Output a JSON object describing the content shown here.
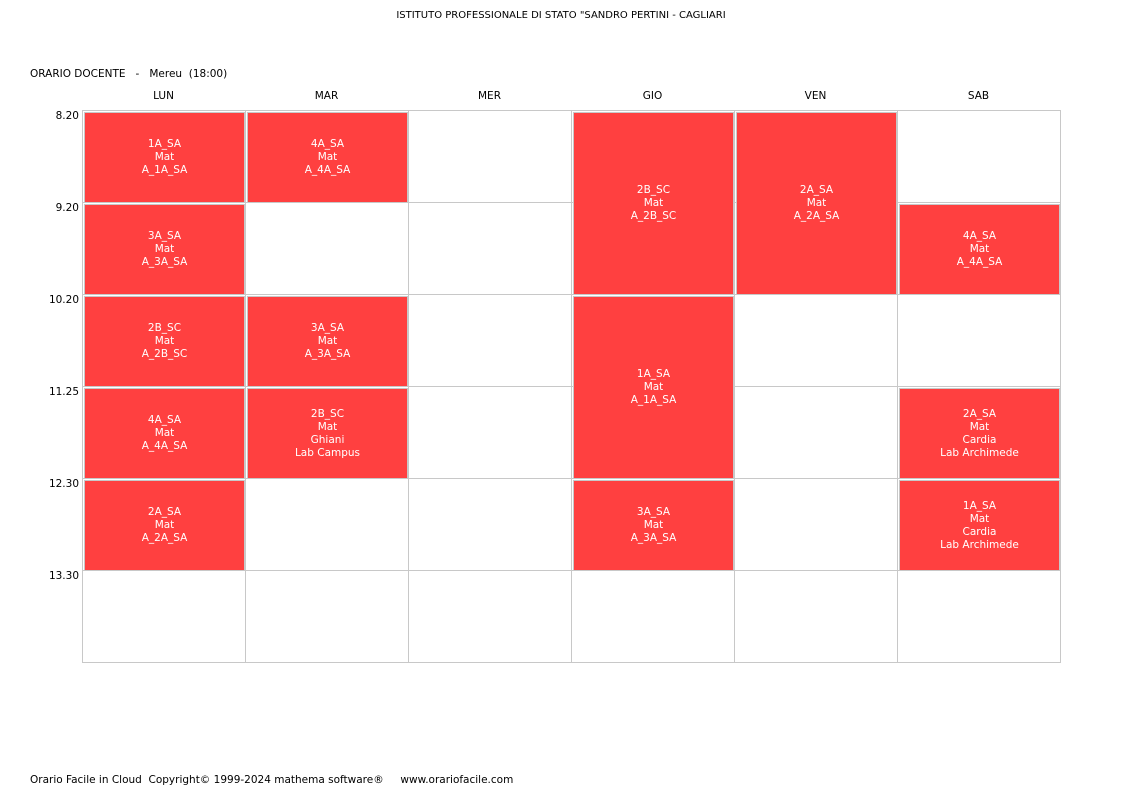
{
  "header": {
    "school": "ISTITUTO PROFESSIONALE DI STATO \"SANDRO PERTINI - CAGLIARI",
    "subtitle": "ORARIO DOCENTE   -   Mereu  (18:00)"
  },
  "days": [
    "LUN",
    "MAR",
    "MER",
    "GIO",
    "VEN",
    "SAB"
  ],
  "times": [
    "8.20",
    "9.20",
    "10.20",
    "11.25",
    "12.30",
    "13.30"
  ],
  "lessons": [
    {
      "day": 0,
      "start": 0,
      "span": 1,
      "lines": [
        "1A_SA",
        "Mat",
        "A_1A_SA"
      ]
    },
    {
      "day": 0,
      "start": 1,
      "span": 1,
      "lines": [
        "3A_SA",
        "Mat",
        "A_3A_SA"
      ]
    },
    {
      "day": 0,
      "start": 2,
      "span": 1,
      "lines": [
        "2B_SC",
        "Mat",
        "A_2B_SC"
      ]
    },
    {
      "day": 0,
      "start": 3,
      "span": 1,
      "lines": [
        "4A_SA",
        "Mat",
        "A_4A_SA"
      ]
    },
    {
      "day": 0,
      "start": 4,
      "span": 1,
      "lines": [
        "2A_SA",
        "Mat",
        "A_2A_SA"
      ]
    },
    {
      "day": 1,
      "start": 0,
      "span": 1,
      "lines": [
        "4A_SA",
        "Mat",
        "A_4A_SA"
      ]
    },
    {
      "day": 1,
      "start": 2,
      "span": 1,
      "lines": [
        "3A_SA",
        "Mat",
        "A_3A_SA"
      ]
    },
    {
      "day": 1,
      "start": 3,
      "span": 1,
      "lines": [
        "2B_SC",
        "Mat",
        "Ghiani",
        "Lab Campus"
      ]
    },
    {
      "day": 3,
      "start": 0,
      "span": 2,
      "lines": [
        "2B_SC",
        "Mat",
        "A_2B_SC"
      ]
    },
    {
      "day": 3,
      "start": 2,
      "span": 2,
      "lines": [
        "1A_SA",
        "Mat",
        "A_1A_SA"
      ]
    },
    {
      "day": 3,
      "start": 4,
      "span": 1,
      "lines": [
        "3A_SA",
        "Mat",
        "A_3A_SA"
      ]
    },
    {
      "day": 4,
      "start": 0,
      "span": 2,
      "lines": [
        "2A_SA",
        "Mat",
        "A_2A_SA"
      ]
    },
    {
      "day": 5,
      "start": 1,
      "span": 1,
      "lines": [
        "4A_SA",
        "Mat",
        "A_4A_SA"
      ]
    },
    {
      "day": 5,
      "start": 3,
      "span": 1,
      "lines": [
        "2A_SA",
        "Mat",
        "Cardia",
        "Lab Archimede"
      ]
    },
    {
      "day": 5,
      "start": 4,
      "span": 1,
      "lines": [
        "1A_SA",
        "Mat",
        "Cardia",
        "Lab Archimede"
      ]
    }
  ],
  "colors": {
    "lesson_bg": "#ff4040",
    "lesson_text": "#ffffff",
    "grid_line": "#c8c8c8"
  },
  "footer": {
    "text": "Orario Facile in Cloud  Copyright© 1999-2024 mathema software®     www.orariofacile.com"
  }
}
